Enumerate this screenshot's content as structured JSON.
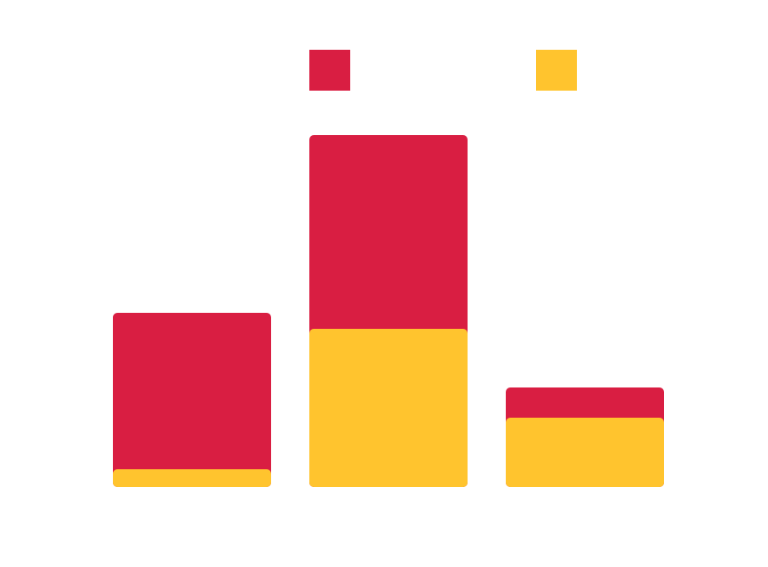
{
  "chart_data": {
    "type": "bar",
    "stacked": true,
    "categories": [
      "",
      "",
      ""
    ],
    "series": [
      {
        "name": "",
        "color": "#d91e42",
        "values": [
          176,
          218,
          34
        ]
      },
      {
        "name": "",
        "color": "#ffc42e",
        "values": [
          20,
          178,
          78
        ]
      }
    ],
    "ylim": [
      0,
      400
    ],
    "grid": false,
    "legend_position": "top-center",
    "title": "",
    "xlabel": "",
    "ylabel": ""
  }
}
